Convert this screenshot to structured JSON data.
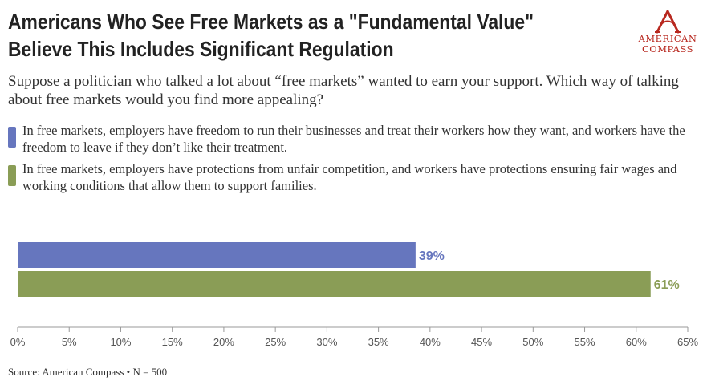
{
  "title_line1": "Americans Who See Free Markets as a \"Fundamental Value\"",
  "title_line2": "Believe This Includes Significant Regulation",
  "logo": {
    "line1": "AMERICAN",
    "line2": "COMPASS",
    "color": "#b8281f"
  },
  "subtitle": "Suppose a politician who talked a lot about “free markets” wanted to earn your support. Which way of talking about free markets would you find more appealing?",
  "legend": [
    {
      "label": "In free markets, employers have freedom to run their businesses and treat their workers how they want, and workers have the freedom to leave if they don’t like their treatment.",
      "color": "#6676be"
    },
    {
      "label": "In free markets, employers have protections from unfair competition, and workers have protections ensuring fair wages and working conditions that allow them to support families.",
      "color": "#8a9d56"
    }
  ],
  "chart_data": {
    "type": "bar",
    "orientation": "horizontal",
    "series": [
      {
        "name": "Freedom to run businesses / freedom to leave",
        "value": 38.6,
        "label": "39%",
        "color": "#6676be"
      },
      {
        "name": "Protections from unfair competition / fair wages",
        "value": 61.4,
        "label": "61%",
        "color": "#8a9d56"
      }
    ],
    "xlim": [
      0,
      65
    ],
    "xticks": [
      0,
      5,
      10,
      15,
      20,
      25,
      30,
      35,
      40,
      45,
      50,
      55,
      60,
      65
    ],
    "xtick_labels": [
      "0%",
      "5%",
      "10%",
      "15%",
      "20%",
      "25%",
      "30%",
      "35%",
      "40%",
      "45%",
      "50%",
      "55%",
      "60%",
      "65%"
    ],
    "grid": false
  },
  "source": "Source: American Compass • N = 500"
}
